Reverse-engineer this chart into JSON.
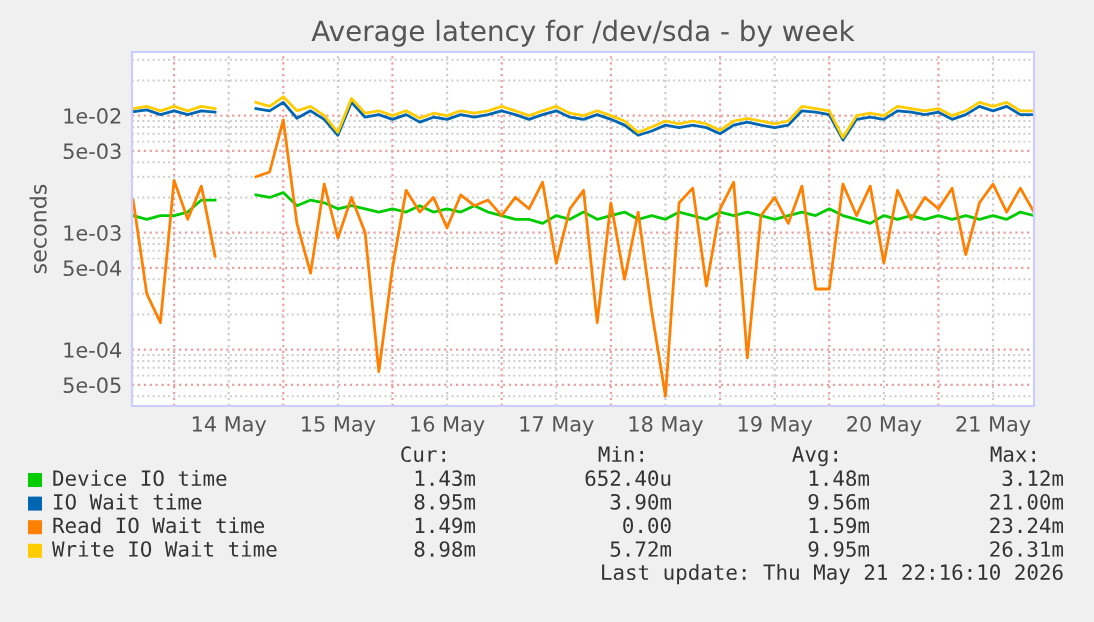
{
  "chart_data": {
    "type": "line",
    "title": "Average latency for /dev/sda - by week",
    "ylabel": "seconds",
    "x": [
      "2026-05-13T15:00",
      "2026-05-13T18:00",
      "2026-05-13T21:00",
      "2026-05-14T00:00",
      "2026-05-14T03:00",
      "2026-05-14T06:00",
      "2026-05-14T09:00",
      "2026-05-14T12:00",
      "2026-05-14T15:00",
      "2026-05-14T18:00",
      "2026-05-14T21:00",
      "2026-05-15T00:00",
      "2026-05-15T03:00",
      "2026-05-15T06:00",
      "2026-05-15T09:00",
      "2026-05-15T12:00",
      "2026-05-15T15:00",
      "2026-05-15T18:00",
      "2026-05-15T21:00",
      "2026-05-16T00:00",
      "2026-05-16T03:00",
      "2026-05-16T06:00",
      "2026-05-16T09:00",
      "2026-05-16T12:00",
      "2026-05-16T15:00",
      "2026-05-16T18:00",
      "2026-05-16T21:00",
      "2026-05-17T00:00",
      "2026-05-17T03:00",
      "2026-05-17T06:00",
      "2026-05-17T09:00",
      "2026-05-17T12:00",
      "2026-05-17T15:00",
      "2026-05-17T18:00",
      "2026-05-17T21:00",
      "2026-05-18T00:00",
      "2026-05-18T03:00",
      "2026-05-18T06:00",
      "2026-05-18T09:00",
      "2026-05-18T12:00",
      "2026-05-18T15:00",
      "2026-05-18T18:00",
      "2026-05-18T21:00",
      "2026-05-19T00:00",
      "2026-05-19T03:00",
      "2026-05-19T06:00",
      "2026-05-19T09:00",
      "2026-05-19T12:00",
      "2026-05-19T15:00",
      "2026-05-19T18:00",
      "2026-05-19T21:00",
      "2026-05-20T00:00",
      "2026-05-20T03:00",
      "2026-05-20T06:00",
      "2026-05-20T09:00",
      "2026-05-20T12:00",
      "2026-05-20T15:00",
      "2026-05-20T18:00",
      "2026-05-20T21:00",
      "2026-05-21T00:00",
      "2026-05-21T03:00",
      "2026-05-21T06:00",
      "2026-05-21T09:00",
      "2026-05-21T12:00",
      "2026-05-21T15:00",
      "2026-05-21T18:00",
      "2026-05-21T21:00"
    ],
    "series": [
      {
        "name": "Device IO time",
        "color": "#00cc00",
        "values": [
          0.0014,
          0.0013,
          0.0014,
          0.0014,
          0.0015,
          0.0019,
          0.0019,
          null,
          null,
          0.0021,
          0.002,
          0.0022,
          0.0017,
          0.0019,
          0.0018,
          0.0016,
          0.0017,
          0.0016,
          0.0015,
          0.0016,
          0.0015,
          0.0017,
          0.0015,
          0.0016,
          0.0015,
          0.0017,
          0.0015,
          0.0014,
          0.0013,
          0.0013,
          0.0012,
          0.0014,
          0.0013,
          0.0015,
          0.0013,
          0.0014,
          0.0015,
          0.0013,
          0.0014,
          0.0013,
          0.0015,
          0.0014,
          0.0013,
          0.0015,
          0.0014,
          0.0015,
          0.0014,
          0.0013,
          0.0014,
          0.0015,
          0.0014,
          0.0016,
          0.0014,
          0.0013,
          0.0012,
          0.0014,
          0.0013,
          0.0014,
          0.0013,
          0.0014,
          0.0013,
          0.0014,
          0.0013,
          0.0014,
          0.0013,
          0.0015,
          0.0014
        ]
      },
      {
        "name": "IO Wait time",
        "color": "#0066b3",
        "values": [
          0.0108,
          0.0112,
          0.0102,
          0.011,
          0.0102,
          0.011,
          0.0107,
          null,
          null,
          0.0115,
          0.011,
          0.013,
          0.0095,
          0.011,
          0.0093,
          0.0068,
          0.013,
          0.0097,
          0.0102,
          0.0093,
          0.0102,
          0.0088,
          0.0097,
          0.0093,
          0.0102,
          0.0097,
          0.0102,
          0.011,
          0.0102,
          0.0093,
          0.0102,
          0.011,
          0.0097,
          0.0093,
          0.0102,
          0.0093,
          0.0083,
          0.0068,
          0.0074,
          0.0083,
          0.0079,
          0.0083,
          0.0079,
          0.007,
          0.0083,
          0.0088,
          0.0083,
          0.0079,
          0.0083,
          0.011,
          0.0107,
          0.0102,
          0.0062,
          0.0093,
          0.0097,
          0.0093,
          0.011,
          0.0107,
          0.0102,
          0.0107,
          0.0093,
          0.0102,
          0.012,
          0.011,
          0.012,
          0.0102,
          0.0102
        ]
      },
      {
        "name": "Read IO Wait time",
        "color": "#ff8000",
        "values": [
          0.0019,
          0.0003,
          0.00017,
          0.0028,
          0.0013,
          0.0025,
          0.00063,
          null,
          null,
          0.003,
          0.0033,
          0.0092,
          0.0012,
          0.00045,
          0.0026,
          0.0009,
          0.002,
          0.001,
          6.5e-05,
          0.0005,
          0.0023,
          0.0015,
          0.002,
          0.0011,
          0.0021,
          0.0017,
          0.0019,
          0.0014,
          0.002,
          0.0016,
          0.0027,
          0.00055,
          0.0016,
          0.0023,
          0.00017,
          0.0018,
          0.0004,
          0.0015,
          0.00021,
          4e-05,
          0.0018,
          0.0024,
          0.00035,
          0.0016,
          0.0027,
          8.5e-05,
          0.0014,
          0.002,
          0.0012,
          0.0025,
          0.00033,
          0.00033,
          0.0026,
          0.0014,
          0.0025,
          0.00055,
          0.0023,
          0.0013,
          0.002,
          0.0016,
          0.0024,
          0.00065,
          0.0018,
          0.0026,
          0.0015,
          0.0024,
          0.0015
        ]
      },
      {
        "name": "Write IO Wait time",
        "color": "#ffcc00",
        "values": [
          0.0115,
          0.012,
          0.011,
          0.012,
          0.011,
          0.012,
          0.0115,
          null,
          null,
          0.013,
          0.012,
          0.0145,
          0.011,
          0.012,
          0.01,
          0.0072,
          0.014,
          0.0105,
          0.011,
          0.01,
          0.011,
          0.0095,
          0.0105,
          0.01,
          0.011,
          0.0105,
          0.011,
          0.012,
          0.011,
          0.01,
          0.011,
          0.012,
          0.0105,
          0.01,
          0.011,
          0.01,
          0.009,
          0.0072,
          0.008,
          0.009,
          0.0085,
          0.009,
          0.0085,
          0.0075,
          0.009,
          0.0095,
          0.009,
          0.0085,
          0.009,
          0.012,
          0.0115,
          0.011,
          0.0065,
          0.01,
          0.0105,
          0.01,
          0.012,
          0.0115,
          0.011,
          0.0115,
          0.01,
          0.011,
          0.013,
          0.012,
          0.013,
          0.011,
          0.011
        ]
      }
    ],
    "log": "y",
    "ylim": [
      3.3e-05,
      0.035
    ],
    "yticks": [
      {
        "value": 5e-05,
        "label": "5e-05"
      },
      {
        "value": 0.0001,
        "label": "1e-04"
      },
      {
        "value": 0.0005,
        "label": "5e-04"
      },
      {
        "value": 0.001,
        "label": "1e-03"
      },
      {
        "value": 0.005,
        "label": "5e-03"
      },
      {
        "value": 0.01,
        "label": "1e-02"
      }
    ],
    "xlim": [
      "2026-05-13T14:45",
      "2026-05-21T21:00"
    ],
    "xticks": [
      {
        "value": "2026-05-14T00:00",
        "label": null
      },
      {
        "value": "2026-05-14T12:00",
        "label": "14 May"
      },
      {
        "value": "2026-05-15T00:00",
        "label": null
      },
      {
        "value": "2026-05-15T12:00",
        "label": "15 May"
      },
      {
        "value": "2026-05-16T00:00",
        "label": null
      },
      {
        "value": "2026-05-16T12:00",
        "label": "16 May"
      },
      {
        "value": "2026-05-17T00:00",
        "label": null
      },
      {
        "value": "2026-05-17T12:00",
        "label": "17 May"
      },
      {
        "value": "2026-05-18T00:00",
        "label": null
      },
      {
        "value": "2026-05-18T12:00",
        "label": "18 May"
      },
      {
        "value": "2026-05-19T00:00",
        "label": null
      },
      {
        "value": "2026-05-19T12:00",
        "label": "19 May"
      },
      {
        "value": "2026-05-20T00:00",
        "label": null
      },
      {
        "value": "2026-05-20T12:00",
        "label": "20 May"
      },
      {
        "value": "2026-05-21T00:00",
        "label": null
      },
      {
        "value": "2026-05-21T12:00",
        "label": "21 May"
      }
    ],
    "grid": true,
    "legend": "bottom",
    "marker": "none",
    "line_style": "solid",
    "annotations": [
      "Cur:",
      "Min:",
      "Avg:",
      "Max:",
      "1.43m",
      "652.40u",
      "1.48m",
      "3.12m",
      "8.95m",
      "3.90m",
      "9.56m",
      "21.00m",
      "1.49m",
      "0.00",
      "1.59m",
      "23.24m",
      "8.98m",
      "5.72m",
      "9.95m",
      "26.31m",
      "Last update: Thu May 21 22:16:10 2026"
    ]
  }
}
